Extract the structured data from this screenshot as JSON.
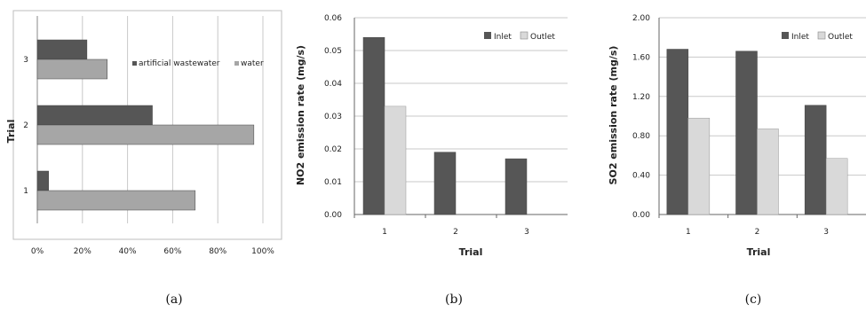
{
  "colors": {
    "dark": "#565656",
    "light": "#a6a6a6",
    "lighter": "#d9d9d9",
    "grid": "#c8c8c8",
    "axis": "#888888"
  },
  "chart_data": [
    {
      "id": "a",
      "type": "bar",
      "orientation": "horizontal",
      "caption": "(a)",
      "ylabel": "Trial",
      "xlabel": "",
      "categories": [
        "1",
        "2",
        "3"
      ],
      "series": [
        {
          "name": "artificial wastewater",
          "values": [
            5,
            51,
            22
          ]
        },
        {
          "name": "water",
          "values": [
            70,
            96,
            31
          ]
        }
      ],
      "xlim": [
        0,
        100
      ],
      "xticks": [
        "0%",
        "20%",
        "40%",
        "60%",
        "80%",
        "100%"
      ],
      "grid": "vertical",
      "legend": "right"
    },
    {
      "id": "b",
      "type": "bar",
      "caption": "(b)",
      "xlabel": "Trial",
      "ylabel": "NO2 emission rate (mg/s)",
      "categories": [
        "1",
        "2",
        "3"
      ],
      "series": [
        {
          "name": "Inlet",
          "values": [
            0.054,
            0.019,
            0.017
          ]
        },
        {
          "name": "Outlet",
          "values": [
            0.033,
            null,
            null
          ]
        }
      ],
      "ylim": [
        0,
        0.06
      ],
      "yticks": [
        "0.00",
        "0.01",
        "0.02",
        "0.03",
        "0.04",
        "0.05",
        "0.06"
      ],
      "grid": "horizontal",
      "legend": "top-right"
    },
    {
      "id": "c",
      "type": "bar",
      "caption": "(c)",
      "xlabel": "Trial",
      "ylabel": "SO2 emission rate (mg/s)",
      "categories": [
        "1",
        "2",
        "3"
      ],
      "series": [
        {
          "name": "Inlet",
          "values": [
            1.68,
            1.66,
            1.11
          ]
        },
        {
          "name": "Outlet",
          "values": [
            0.98,
            0.87,
            0.57
          ]
        }
      ],
      "ylim": [
        0,
        2.0
      ],
      "yticks": [
        "0.00",
        "0.40",
        "0.80",
        "1.20",
        "1.60",
        "2.00"
      ],
      "grid": "horizontal",
      "legend": "top-right"
    }
  ]
}
